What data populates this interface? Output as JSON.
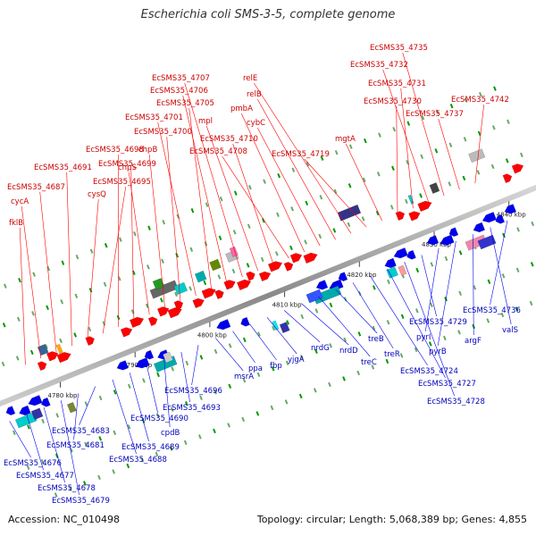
{
  "title": "Escherichia coli SMS-3-5, complete genome",
  "footer": {
    "accession": "Accession: NC_010498",
    "summary": "Topology: circular; Length: 5,068,389 bp; Genes: 4,855"
  },
  "colors": {
    "forward_strand": "#ff0000",
    "reverse_strand": "#0000ee",
    "forward_label": "#cc0000",
    "reverse_label": "#0000bb",
    "backbone": "#999999",
    "gc_ticks": "#009900"
  },
  "scale_ticks": [
    "4780 kbp",
    "4790 kbp",
    "4800 kbp",
    "4810 kbp",
    "4820 kbp",
    "4830 kbp",
    "4840 kbp"
  ],
  "forward_labels": [
    "fklB",
    "cycA",
    "EcSMS35_4687",
    "EcSMS35_4691",
    "cysQ",
    "EcSMS35_4695",
    "EcSMS35_4698",
    "EcSMS35_4699",
    "chpS",
    "chpB",
    "EcSMS35_4700",
    "EcSMS35_4701",
    "EcSMS35_4705",
    "EcSMS35_4706",
    "EcSMS35_4707",
    "mpl",
    "EcSMS35_4710",
    "EcSMS35_4708",
    "pmbA",
    "cybC",
    "relB",
    "relE",
    "EcSMS35_4719",
    "mgtA",
    "EcSMS35_4730",
    "EcSMS35_4731",
    "EcSMS35_4732",
    "EcSMS35_4735",
    "EcSMS35_4737",
    "EcSMS35_4742"
  ],
  "reverse_labels": [
    "EcSMS35_4676",
    "EcSMS35_4677",
    "EcSMS35_4678",
    "EcSMS35_4679",
    "EcSMS35_4681",
    "EcSMS35_4683",
    "EcSMS35_4688",
    "EcSMS35_4689",
    "EcSMS35_4690",
    "cpdB",
    "EcSMS35_4693",
    "EcSMS35_4696",
    "msrA",
    "ppa",
    "fbp",
    "yjgA",
    "nrdG",
    "nrdD",
    "treC",
    "treB",
    "treR",
    "EcSMS35_4724",
    "EcSMS35_4727",
    "EcSMS35_4728",
    "EcSMS35_4729",
    "pyrI",
    "pyrB",
    "argF",
    "valS",
    "EcSMS35_4736"
  ]
}
